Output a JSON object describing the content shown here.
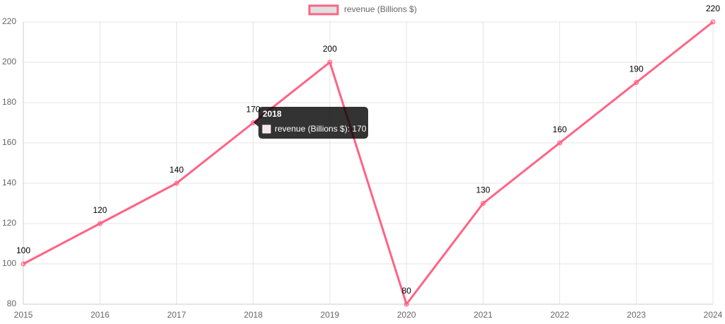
{
  "chart_data": {
    "type": "line",
    "categories": [
      "2015",
      "2016",
      "2017",
      "2018",
      "2019",
      "2020",
      "2021",
      "2022",
      "2023",
      "2024"
    ],
    "series": [
      {
        "name": "revenue (Billions $)",
        "color": "#ff6384",
        "values": [
          100,
          120,
          140,
          170,
          200,
          80,
          130,
          160,
          190,
          220
        ]
      }
    ],
    "ylim": [
      80,
      220
    ],
    "yticks": [
      80,
      100,
      120,
      140,
      160,
      180,
      200,
      220
    ],
    "grid": true,
    "legend": "top",
    "tooltip": {
      "title": "2018",
      "label": "revenue (Billions $): 170"
    }
  }
}
